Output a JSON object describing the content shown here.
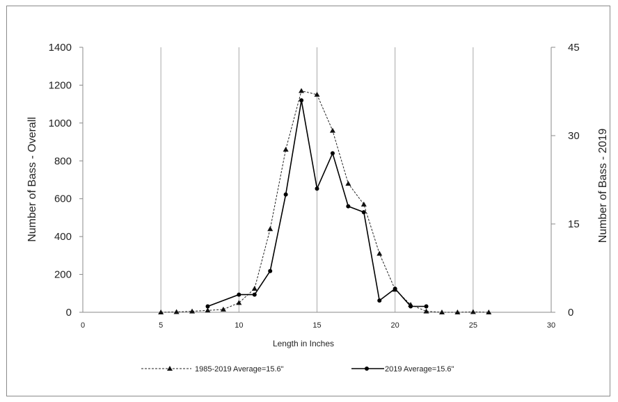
{
  "chart_data": {
    "type": "line",
    "title": "",
    "xlabel": "Length in Inches",
    "ylabel_left": "Number of Bass - Overall",
    "ylabel_right": "Number of Bass - 2019",
    "xlim": [
      0,
      30
    ],
    "xticks": [
      0,
      5,
      10,
      15,
      20,
      25,
      30
    ],
    "ylim_left": [
      0,
      1400
    ],
    "yticks_left": [
      0,
      200,
      400,
      600,
      800,
      1000,
      1200,
      1400
    ],
    "ylim_right": [
      0,
      45
    ],
    "yticks_right": [
      0,
      15,
      30,
      45
    ],
    "vertical_grid": true,
    "legend_position": "bottom",
    "series": [
      {
        "name": "1985-2019 Average=15.6\"",
        "axis": "left",
        "style": "dashed",
        "marker": "triangle",
        "color": "#222222",
        "x": [
          5,
          6,
          7,
          8,
          9,
          10,
          11,
          12,
          13,
          14,
          15,
          16,
          17,
          18,
          19,
          20,
          21,
          22,
          23,
          24,
          25,
          26
        ],
        "y": [
          0,
          2,
          5,
          10,
          15,
          50,
          125,
          440,
          860,
          1170,
          1150,
          960,
          680,
          570,
          310,
          120,
          40,
          5,
          0,
          0,
          2,
          0
        ]
      },
      {
        "name": "2019 Average=15.6\"",
        "axis": "right",
        "style": "solid",
        "marker": "circle",
        "color": "#000000",
        "x": [
          8,
          10,
          11,
          12,
          13,
          14,
          15,
          16,
          17,
          18,
          19,
          20,
          21,
          22
        ],
        "y": [
          1,
          3,
          3,
          7,
          20,
          36,
          21,
          27,
          18,
          17,
          2,
          4,
          1,
          1
        ]
      }
    ]
  }
}
